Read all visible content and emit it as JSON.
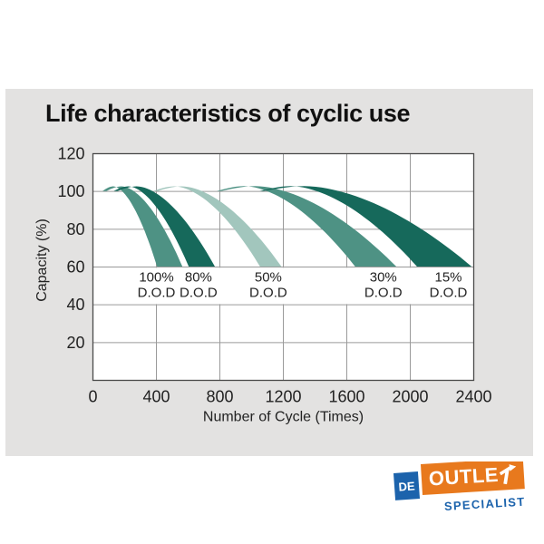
{
  "page": {
    "background": "#ffffff",
    "panel_color": "#e3e2e1"
  },
  "chart_data": {
    "type": "area",
    "title": "Life characteristics of cyclic use",
    "xlabel": "Number of Cycle (Times)",
    "ylabel": "Capacity (%)",
    "xlim": [
      0,
      2400
    ],
    "ylim": [
      0,
      120
    ],
    "x_ticks": [
      0,
      400,
      800,
      1200,
      1600,
      2000,
      2400
    ],
    "y_ticks": [
      120,
      100,
      80,
      60,
      40,
      20
    ],
    "grid": true,
    "grid_color": "#9a9a9a",
    "plot_border_color": "#4a4a4a",
    "plot_background": "#ffffff",
    "label_band_capacity_range": [
      40,
      60
    ],
    "series": [
      {
        "name": "100% D.O.D",
        "label_lines": [
          "100%",
          "D.O.D"
        ],
        "label_x_cycles": 400,
        "color": "#4E9284",
        "start_cycles": 60,
        "peak_capacity_pct": 102.7,
        "cycles_at_60pct_band": [
          405,
          565
        ],
        "centerline_points": [
          [
            60,
            100
          ],
          [
            230,
            102.5
          ],
          [
            350,
            92
          ],
          [
            430,
            78
          ],
          [
            485,
            60
          ]
        ]
      },
      {
        "name": "80% D.O.D",
        "label_lines": [
          "80%",
          "D.O.D"
        ],
        "label_x_cycles": 665,
        "color": "#16695B",
        "start_cycles": 130,
        "peak_capacity_pct": 102.7,
        "cycles_at_60pct_band": [
          605,
          770
        ],
        "centerline_points": [
          [
            130,
            100
          ],
          [
            330,
            102.5
          ],
          [
            500,
            92
          ],
          [
            620,
            78
          ],
          [
            690,
            60
          ]
        ]
      },
      {
        "name": "50% D.O.D",
        "label_lines": [
          "50%",
          "D.O.D"
        ],
        "label_x_cycles": 1105,
        "color": "#A2C6BD",
        "start_cycles": 380,
        "peak_capacity_pct": 102.7,
        "cycles_at_60pct_band": [
          1055,
          1190
        ],
        "centerline_points": [
          [
            380,
            100
          ],
          [
            620,
            102.5
          ],
          [
            900,
            92
          ],
          [
            1050,
            78
          ],
          [
            1120,
            60
          ]
        ]
      },
      {
        "name": "30% D.O.D",
        "label_lines": [
          "30%",
          "D.O.D"
        ],
        "label_x_cycles": 1830,
        "color": "#4E9284",
        "start_cycles": 780,
        "peak_capacity_pct": 102.8,
        "cycles_at_60pct_band": [
          1655,
          1915
        ],
        "centerline_points": [
          [
            780,
            100
          ],
          [
            1100,
            102.8
          ],
          [
            1450,
            95
          ],
          [
            1700,
            78
          ],
          [
            1785,
            60
          ]
        ]
      },
      {
        "name": "15% D.O.D",
        "label_lines": [
          "15%",
          "D.O.D"
        ],
        "label_x_cycles": 2240,
        "color": "#16695B",
        "start_cycles": 1050,
        "peak_capacity_pct": 102.8,
        "cycles_at_60pct_band": [
          2045,
          2390
        ],
        "centerline_points": [
          [
            1050,
            100
          ],
          [
            1420,
            102.8
          ],
          [
            1850,
            95
          ],
          [
            2120,
            78
          ],
          [
            2215,
            60
          ]
        ]
      }
    ]
  },
  "logo": {
    "de": "DE",
    "outlet": "OUTLET",
    "specialist": "SPECIALIST",
    "orange": "#E8791D",
    "blue": "#1C63AC",
    "text_color": "#ffffff"
  }
}
